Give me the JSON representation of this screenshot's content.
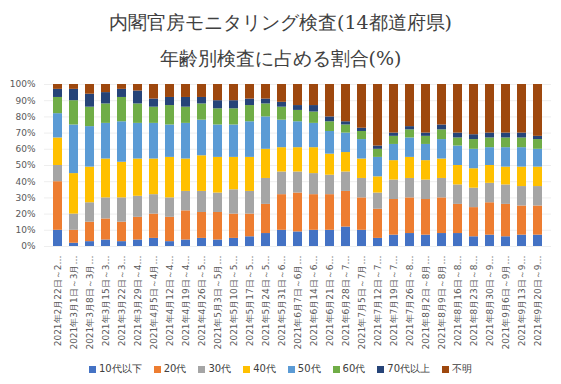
{
  "chart_data": {
    "type": "bar",
    "stacked": true,
    "title": "内閣官房モニタリング検査(14都道府県)",
    "subtitle": "年齢別検査に占める割合(%)",
    "categories": [
      "2021年2月22日～2…",
      "2021年3月1日～3月…",
      "2021年3月8日～3月…",
      "2021年3月15日～3…",
      "2021年3月22日～3…",
      "2021年3月29日～4…",
      "2021年4月5日～4月…",
      "2021年4月12日～4…",
      "2021年4月19日～4…",
      "2021年4月26日～5…",
      "2021年5月3日～5月…",
      "2021年5月10日～5…",
      "2021年5月17日～5…",
      "2021年5月24日～5…",
      "2021年5月31日～6…",
      "2021年6月7日～6月…",
      "2021年6月14日～6…",
      "2021年6月21日～6…",
      "2021年6月28日～7…",
      "2021年7月5日～7月…",
      "2021年7月12日～7…",
      "2021年7月19日～7…",
      "2021年7月26日～8…",
      "2021年8月2日～8月…",
      "2021年8月9日～8月…",
      "2021年8月16日～8…",
      "2021年8月23日～8…",
      "2021年8月30日～9…",
      "2021年9月6日～9月…",
      "2021年9月13日～9…",
      "2021年9月20日～9…"
    ],
    "series": [
      {
        "name": "10代以下",
        "color": "#4472c4",
        "values": [
          10,
          2,
          3,
          4,
          3,
          4,
          5,
          3,
          4,
          5,
          4,
          5,
          6,
          8,
          10,
          9,
          10,
          10,
          12,
          10,
          5,
          7,
          8,
          7,
          8,
          8,
          6,
          7,
          6,
          7,
          7
        ]
      },
      {
        "name": "20代",
        "color": "#ed7d31",
        "values": [
          30,
          8,
          12,
          13,
          12,
          14,
          15,
          15,
          18,
          16,
          17,
          15,
          14,
          18,
          22,
          24,
          22,
          22,
          22,
          20,
          18,
          22,
          22,
          22,
          22,
          18,
          18,
          20,
          20,
          18,
          18
        ]
      },
      {
        "name": "30代",
        "color": "#a5a5a5",
        "values": [
          10,
          10,
          12,
          13,
          15,
          13,
          12,
          12,
          12,
          13,
          12,
          15,
          14,
          16,
          14,
          13,
          13,
          12,
          12,
          12,
          10,
          12,
          12,
          12,
          12,
          12,
          12,
          12,
          12,
          12,
          12
        ]
      },
      {
        "name": "40代",
        "color": "#ffc000",
        "values": [
          17,
          25,
          22,
          24,
          22,
          23,
          22,
          25,
          20,
          22,
          22,
          20,
          21,
          18,
          15,
          15,
          16,
          13,
          12,
          12,
          10,
          12,
          13,
          12,
          12,
          12,
          12,
          11,
          11,
          12,
          12
        ]
      },
      {
        "name": "50代",
        "color": "#5b9bd5",
        "values": [
          15,
          30,
          25,
          22,
          25,
          22,
          22,
          20,
          22,
          22,
          20,
          20,
          22,
          20,
          17,
          16,
          15,
          14,
          12,
          12,
          12,
          10,
          12,
          10,
          12,
          12,
          12,
          11,
          12,
          12,
          11
        ]
      },
      {
        "name": "60代",
        "color": "#70ad47",
        "values": [
          10,
          15,
          12,
          12,
          15,
          12,
          10,
          12,
          10,
          10,
          10,
          10,
          10,
          8,
          8,
          7,
          7,
          6,
          5,
          5,
          5,
          5,
          5,
          5,
          6,
          5,
          6,
          6,
          6,
          6,
          6
        ]
      },
      {
        "name": "70代以上",
        "color": "#264478",
        "values": [
          5,
          7,
          8,
          7,
          5,
          8,
          5,
          5,
          6,
          4,
          5,
          5,
          4,
          3,
          3,
          3,
          4,
          3,
          2,
          2,
          2,
          2,
          2,
          2,
          3,
          3,
          3,
          3,
          3,
          3,
          2
        ]
      },
      {
        "name": "不明",
        "color": "#9e480e",
        "values": [
          3,
          3,
          6,
          5,
          3,
          4,
          9,
          8,
          8,
          8,
          10,
          10,
          9,
          9,
          11,
          13,
          13,
          20,
          23,
          27,
          38,
          30,
          26,
          30,
          25,
          30,
          31,
          30,
          30,
          30,
          32
        ]
      }
    ],
    "ylim": [
      0,
      100
    ],
    "yticks": [
      {
        "value": 0,
        "label": "0%"
      },
      {
        "value": 10,
        "label": "10%"
      },
      {
        "value": 20,
        "label": "20%"
      },
      {
        "value": 30,
        "label": "30%"
      },
      {
        "value": 40,
        "label": "40%"
      },
      {
        "value": 50,
        "label": "50%"
      },
      {
        "value": 60,
        "label": "60%"
      },
      {
        "value": 70,
        "label": "70%"
      },
      {
        "value": 80,
        "label": "80%"
      },
      {
        "value": 90,
        "label": "90%"
      },
      {
        "value": 100,
        "label": "100%"
      }
    ],
    "grid": true,
    "legend": "bottom"
  }
}
